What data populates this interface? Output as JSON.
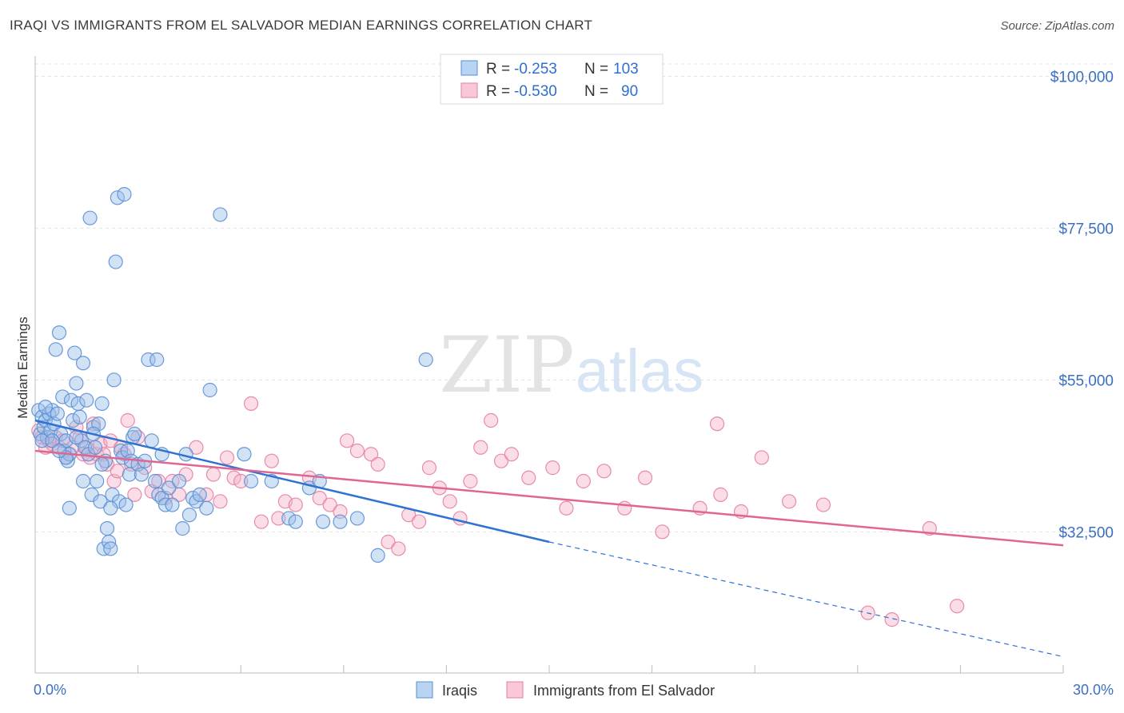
{
  "header": {
    "title": "IRAQI VS IMMIGRANTS FROM EL SALVADOR MEDIAN EARNINGS CORRELATION CHART",
    "source": "Source: ZipAtlas.com"
  },
  "watermark": {
    "zip": "ZIP",
    "atlas": "atlas"
  },
  "colors": {
    "blue_fill": "#9cbfe8",
    "blue_stroke": "#5a8fd6",
    "blue_line": "#2e72d2",
    "pink_fill": "#f4b3c8",
    "pink_stroke": "#e57fa3",
    "pink_line": "#e0668f",
    "tick_label": "#3a6fc4",
    "grid": "#e2e2e2"
  },
  "chart_data": {
    "type": "scatter",
    "title": "IRAQI VS IMMIGRANTS FROM EL SALVADOR MEDIAN EARNINGS CORRELATION CHART",
    "xlabel": "",
    "ylabel": "Median Earnings",
    "xlim": [
      0,
      30
    ],
    "ylim": [
      13000,
      103000
    ],
    "x_tick_labels": [
      {
        "value": 0,
        "label": "0.0%"
      },
      {
        "value": 30,
        "label": "30.0%"
      }
    ],
    "y_ticks": [
      {
        "value": 32500,
        "label": "$32,500"
      },
      {
        "value": 55000,
        "label": "$55,000"
      },
      {
        "value": 77500,
        "label": "$77,500"
      },
      {
        "value": 100000,
        "label": "$100,000"
      }
    ],
    "grid": true,
    "legend_position": "top-center",
    "legend": [
      {
        "series": "Iraqis",
        "r_label": "R =",
        "r": "-0.253",
        "n_label": "N =",
        "n": "103"
      },
      {
        "series": "Immigrants from El Salvador",
        "r_label": "R =",
        "r": "-0.530",
        "n_label": "N =",
        "n": "90"
      }
    ],
    "series": [
      {
        "name": "Iraqis",
        "color": "#5a8fd6",
        "trend": {
          "x": [
            0,
            15
          ],
          "y": [
            49000,
            31000
          ],
          "dashed_extension": {
            "x": [
              15,
              30
            ],
            "y": [
              31000,
              14000
            ]
          }
        },
        "points": [
          [
            0.1,
            50.5
          ],
          [
            0.15,
            47.0
          ],
          [
            0.2,
            49.5
          ],
          [
            0.25,
            48.0
          ],
          [
            0.3,
            49.0
          ],
          [
            0.35,
            46.5
          ],
          [
            0.4,
            50.0
          ],
          [
            0.45,
            47.5
          ],
          [
            0.5,
            50.5
          ],
          [
            0.55,
            48.5
          ],
          [
            0.6,
            59.5
          ],
          [
            0.65,
            50.0
          ],
          [
            0.7,
            62.0
          ],
          [
            0.75,
            47.0
          ],
          [
            0.8,
            52.5
          ],
          [
            0.85,
            44.5
          ],
          [
            0.9,
            46.0
          ],
          [
            0.95,
            43.0
          ],
          [
            1.0,
            44.0
          ],
          [
            1.05,
            52.0
          ],
          [
            1.1,
            49.0
          ],
          [
            1.15,
            59.0
          ],
          [
            1.2,
            54.5
          ],
          [
            1.25,
            51.5
          ],
          [
            1.3,
            49.5
          ],
          [
            1.35,
            46.0
          ],
          [
            1.4,
            57.5
          ],
          [
            1.45,
            45.0
          ],
          [
            1.5,
            52.0
          ],
          [
            1.55,
            44.0
          ],
          [
            1.6,
            79.0
          ],
          [
            1.65,
            38.0
          ],
          [
            1.7,
            48.0
          ],
          [
            1.75,
            45.0
          ],
          [
            1.8,
            40.0
          ],
          [
            1.85,
            48.5
          ],
          [
            1.9,
            37.0
          ],
          [
            1.95,
            51.5
          ],
          [
            2.0,
            30.0
          ],
          [
            2.05,
            43.0
          ],
          [
            2.1,
            33.0
          ],
          [
            2.15,
            31.0
          ],
          [
            2.2,
            30.0
          ],
          [
            2.25,
            38.0
          ],
          [
            2.3,
            55.0
          ],
          [
            2.35,
            72.5
          ],
          [
            2.4,
            82.0
          ],
          [
            2.45,
            37.0
          ],
          [
            2.5,
            44.5
          ],
          [
            2.55,
            43.5
          ],
          [
            2.6,
            82.5
          ],
          [
            2.65,
            36.5
          ],
          [
            2.7,
            44.5
          ],
          [
            2.75,
            41.0
          ],
          [
            2.8,
            43.0
          ],
          [
            2.85,
            46.5
          ],
          [
            2.9,
            47.0
          ],
          [
            3.0,
            42.5
          ],
          [
            3.1,
            41.0
          ],
          [
            3.2,
            43.0
          ],
          [
            3.3,
            58.0
          ],
          [
            3.4,
            46.0
          ],
          [
            3.5,
            40.0
          ],
          [
            3.55,
            58.0
          ],
          [
            3.6,
            38.0
          ],
          [
            3.7,
            37.5
          ],
          [
            3.8,
            36.5
          ],
          [
            3.9,
            39.0
          ],
          [
            4.0,
            36.5
          ],
          [
            4.2,
            40.0
          ],
          [
            4.3,
            33.0
          ],
          [
            4.4,
            44.0
          ],
          [
            4.5,
            35.0
          ],
          [
            4.6,
            37.5
          ],
          [
            4.7,
            37.0
          ],
          [
            4.8,
            38.0
          ],
          [
            5.0,
            36.0
          ],
          [
            5.1,
            53.5
          ],
          [
            5.4,
            79.5
          ],
          [
            6.1,
            44.0
          ],
          [
            6.3,
            40.0
          ],
          [
            6.9,
            40.0
          ],
          [
            7.4,
            34.5
          ],
          [
            7.6,
            34.0
          ],
          [
            8.0,
            39.0
          ],
          [
            8.3,
            40.0
          ],
          [
            8.4,
            34.0
          ],
          [
            8.9,
            34.0
          ],
          [
            9.4,
            34.5
          ],
          [
            10.0,
            29.0
          ],
          [
            11.4,
            58.0
          ],
          [
            0.2,
            46.0
          ],
          [
            0.5,
            46.0
          ],
          [
            0.9,
            43.5
          ],
          [
            1.2,
            46.5
          ],
          [
            1.7,
            47.0
          ],
          [
            1.0,
            36.0
          ],
          [
            1.4,
            40.0
          ],
          [
            3.7,
            44.0
          ],
          [
            2.2,
            36.0
          ],
          [
            0.7,
            44.5
          ],
          [
            0.3,
            51.0
          ],
          [
            1.95,
            42.5
          ]
        ]
      },
      {
        "name": "Immigrants from El Salvador",
        "color": "#e57fa3",
        "trend": {
          "x": [
            0,
            30
          ],
          "y": [
            44500,
            30500
          ]
        },
        "points": [
          [
            0.1,
            47.5
          ],
          [
            0.2,
            46.5
          ],
          [
            0.3,
            45.0
          ],
          [
            0.4,
            46.0
          ],
          [
            0.5,
            45.5
          ],
          [
            0.6,
            46.5
          ],
          [
            0.7,
            45.0
          ],
          [
            0.8,
            46.0
          ],
          [
            0.9,
            43.5
          ],
          [
            1.0,
            44.0
          ],
          [
            1.1,
            45.0
          ],
          [
            1.2,
            48.0
          ],
          [
            1.3,
            46.5
          ],
          [
            1.4,
            44.0
          ],
          [
            1.5,
            45.0
          ],
          [
            1.6,
            43.5
          ],
          [
            1.7,
            48.5
          ],
          [
            1.8,
            44.0
          ],
          [
            1.9,
            45.5
          ],
          [
            2.0,
            44.0
          ],
          [
            2.1,
            42.5
          ],
          [
            2.2,
            46.0
          ],
          [
            2.3,
            40.0
          ],
          [
            2.4,
            41.5
          ],
          [
            2.5,
            45.0
          ],
          [
            2.6,
            44.0
          ],
          [
            2.7,
            49.0
          ],
          [
            2.8,
            42.5
          ],
          [
            2.9,
            38.0
          ],
          [
            3.0,
            46.5
          ],
          [
            3.2,
            42.0
          ],
          [
            3.4,
            38.5
          ],
          [
            3.6,
            40.0
          ],
          [
            3.8,
            37.5
          ],
          [
            4.0,
            40.0
          ],
          [
            4.2,
            38.0
          ],
          [
            4.4,
            41.0
          ],
          [
            4.7,
            45.0
          ],
          [
            5.0,
            38.0
          ],
          [
            5.2,
            41.0
          ],
          [
            5.4,
            37.0
          ],
          [
            5.6,
            43.5
          ],
          [
            5.8,
            40.5
          ],
          [
            6.0,
            40.0
          ],
          [
            6.3,
            51.5
          ],
          [
            6.6,
            34.0
          ],
          [
            6.9,
            43.0
          ],
          [
            7.1,
            34.5
          ],
          [
            7.3,
            37.0
          ],
          [
            7.6,
            36.5
          ],
          [
            8.0,
            40.5
          ],
          [
            8.3,
            37.5
          ],
          [
            8.6,
            36.5
          ],
          [
            8.9,
            35.5
          ],
          [
            9.1,
            46.0
          ],
          [
            9.4,
            44.5
          ],
          [
            9.8,
            44.0
          ],
          [
            10.0,
            42.5
          ],
          [
            10.3,
            31.0
          ],
          [
            10.6,
            30.0
          ],
          [
            10.9,
            35.0
          ],
          [
            11.2,
            34.0
          ],
          [
            11.5,
            42.0
          ],
          [
            11.8,
            39.0
          ],
          [
            12.1,
            37.0
          ],
          [
            12.4,
            34.5
          ],
          [
            12.7,
            40.0
          ],
          [
            13.0,
            45.0
          ],
          [
            13.3,
            49.0
          ],
          [
            13.6,
            43.0
          ],
          [
            13.9,
            44.0
          ],
          [
            14.4,
            40.5
          ],
          [
            15.1,
            42.0
          ],
          [
            15.5,
            36.0
          ],
          [
            16.0,
            40.0
          ],
          [
            16.6,
            41.5
          ],
          [
            17.2,
            36.0
          ],
          [
            17.8,
            40.5
          ],
          [
            18.3,
            32.5
          ],
          [
            19.4,
            36.0
          ],
          [
            20.0,
            38.0
          ],
          [
            20.6,
            35.5
          ],
          [
            21.2,
            43.5
          ],
          [
            22.0,
            37.0
          ],
          [
            23.0,
            36.5
          ],
          [
            24.3,
            20.5
          ],
          [
            25.0,
            19.5
          ],
          [
            26.1,
            33.0
          ],
          [
            26.9,
            21.5
          ],
          [
            19.9,
            48.5
          ]
        ]
      }
    ]
  }
}
